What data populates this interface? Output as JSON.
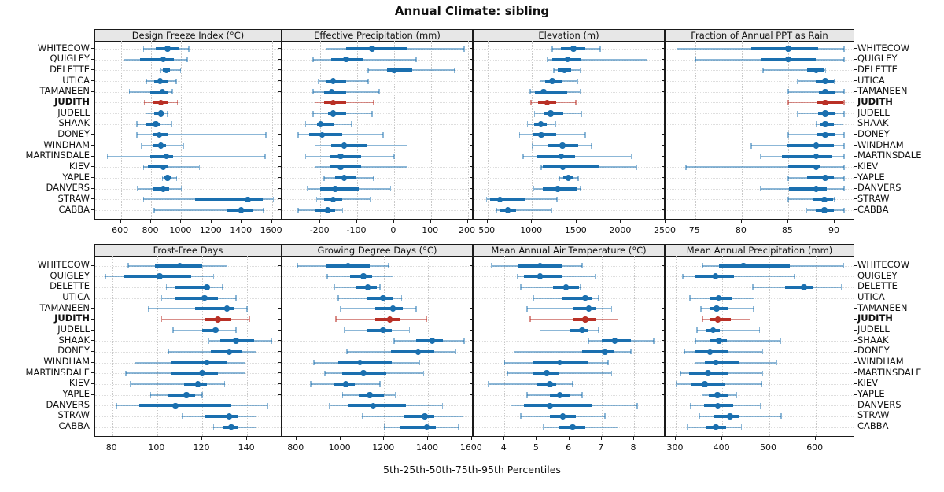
{
  "title": "Annual Climate: sibling",
  "xlabel": "5th-25th-50th-75th-95th Percentiles",
  "highlight_station": "JUDITH",
  "colors": {
    "series": "#1a6faf",
    "series_light": "rgba(26,111,175,0.5)",
    "highlight": "#b93026",
    "highlight_light": "rgba(185,48,38,0.55)",
    "header_bg": "#e7e7e7",
    "border": "#1a1a1a",
    "grid_v": "#c9c9c9",
    "grid_h": "#dedede"
  },
  "chart_data": {
    "type": "dotplot-percentiles",
    "percentiles": [
      5,
      25,
      50,
      75,
      95
    ],
    "legend_note": "thin line = 5th-95th, thick line = 25th-75th, dot = median",
    "stations": [
      "WHITECOW",
      "QUIGLEY",
      "DELETTE",
      "UTICA",
      "TAMANEEN",
      "JUDITH",
      "JUDELL",
      "SHAAK",
      "DONEY",
      "WINDHAM",
      "MARTINSDALE",
      "KIEV",
      "YAPLE",
      "DANVERS",
      "STRAW",
      "CABBA"
    ],
    "panels": [
      {
        "key": "design-freeze-index",
        "title": "Design Freeze Index (°C)",
        "row": 0,
        "col": 0,
        "xlim": [
          430,
          1670
        ],
        "ticks": [
          600,
          800,
          1000,
          1200,
          1400,
          1600
        ],
        "values": [
          [
            750,
            830,
            910,
            980,
            1050
          ],
          [
            620,
            725,
            880,
            950,
            1040
          ],
          [
            865,
            880,
            900,
            925,
            995
          ],
          [
            770,
            820,
            860,
            910,
            965
          ],
          [
            655,
            795,
            875,
            910,
            940
          ],
          [
            755,
            810,
            865,
            915,
            975
          ],
          [
            765,
            820,
            865,
            890,
            910
          ],
          [
            705,
            770,
            830,
            865,
            935
          ],
          [
            705,
            810,
            855,
            915,
            1560
          ],
          [
            735,
            810,
            865,
            900,
            1015
          ],
          [
            510,
            795,
            900,
            945,
            1555
          ],
          [
            750,
            780,
            880,
            910,
            1120
          ],
          [
            875,
            885,
            910,
            935,
            970
          ],
          [
            710,
            810,
            880,
            920,
            1000
          ],
          [
            750,
            1090,
            1440,
            1540,
            1610
          ],
          [
            820,
            1300,
            1395,
            1475,
            1545
          ]
        ]
      },
      {
        "key": "effective-precipitation",
        "title": "Effective Precipitation (mm)",
        "row": 0,
        "col": 1,
        "xlim": [
          -303,
          216
        ],
        "ticks": [
          -200,
          -100,
          0,
          100,
          200
        ],
        "values": [
          [
            -185,
            -130,
            -60,
            35,
            190
          ],
          [
            -220,
            -170,
            -130,
            -85,
            60
          ],
          [
            -70,
            -20,
            0,
            50,
            165
          ],
          [
            -205,
            -185,
            -165,
            -130,
            -70
          ],
          [
            -220,
            -190,
            -170,
            -130,
            -40
          ],
          [
            -215,
            -190,
            -165,
            -130,
            -55
          ],
          [
            -220,
            -180,
            -165,
            -130,
            -60
          ],
          [
            -240,
            -210,
            -200,
            -165,
            -115
          ],
          [
            -260,
            -230,
            -195,
            -140,
            -30
          ],
          [
            -215,
            -170,
            -135,
            -75,
            35
          ],
          [
            -240,
            -175,
            -145,
            -90,
            0
          ],
          [
            -215,
            -175,
            -145,
            -90,
            35
          ],
          [
            -190,
            -160,
            -135,
            -105,
            -55
          ],
          [
            -235,
            -200,
            -160,
            -95,
            -10
          ],
          [
            -210,
            -190,
            -165,
            -140,
            -65
          ],
          [
            -260,
            -215,
            -180,
            -160,
            -140
          ]
        ]
      },
      {
        "key": "elevation",
        "title": "Elevation (m)",
        "row": 0,
        "col": 2,
        "xlim": [
          344,
          2500
        ],
        "ticks": [
          500,
          1000,
          1500,
          2000,
          2500
        ],
        "values": [
          [
            1225,
            1325,
            1465,
            1600,
            1765
          ],
          [
            1170,
            1230,
            1400,
            1545,
            2290
          ],
          [
            1245,
            1290,
            1365,
            1440,
            1540
          ],
          [
            1090,
            1145,
            1225,
            1330,
            1515
          ],
          [
            980,
            1035,
            1130,
            1395,
            1540
          ],
          [
            990,
            1070,
            1170,
            1275,
            1490
          ],
          [
            1030,
            1135,
            1210,
            1355,
            1555
          ],
          [
            950,
            1020,
            1100,
            1165,
            1260
          ],
          [
            860,
            1005,
            1105,
            1270,
            1600
          ],
          [
            1005,
            1170,
            1340,
            1515,
            1670
          ],
          [
            900,
            1055,
            1330,
            1485,
            2115
          ],
          [
            1105,
            1125,
            1345,
            1755,
            2175
          ],
          [
            1305,
            1355,
            1410,
            1465,
            1520
          ],
          [
            1020,
            1120,
            1290,
            1500,
            1545
          ],
          [
            490,
            530,
            640,
            920,
            1280
          ],
          [
            600,
            640,
            730,
            825,
            1220
          ]
        ]
      },
      {
        "key": "fraction-annual-ppt-rain",
        "title": "Fraction of Annual PPT as Rain",
        "row": 0,
        "col": 3,
        "xlim": [
          71.8,
          92.2
        ],
        "ticks": [
          75,
          80,
          85,
          90
        ],
        "values": [
          [
            73,
            81,
            85,
            88.2,
            91
          ],
          [
            75,
            82,
            85,
            88,
            91
          ],
          [
            82.3,
            87,
            88,
            88.9,
            89
          ],
          [
            86,
            88,
            89,
            89.9,
            90
          ],
          [
            85,
            88.3,
            89,
            90,
            91
          ],
          [
            85,
            88.1,
            89,
            90.9,
            91
          ],
          [
            86,
            88.2,
            89,
            90,
            91
          ],
          [
            88,
            88.4,
            89,
            89.9,
            90.9
          ],
          [
            85,
            88.1,
            89,
            90,
            91
          ],
          [
            81,
            84.8,
            88,
            89.9,
            91
          ],
          [
            82,
            84.3,
            88,
            89.7,
            91
          ],
          [
            74,
            85,
            88,
            88.4,
            91
          ],
          [
            85,
            87,
            89,
            89.9,
            91
          ],
          [
            82,
            85.1,
            88,
            89.2,
            91
          ],
          [
            85,
            87.7,
            88.9,
            89.8,
            90
          ],
          [
            87,
            88,
            88.9,
            89.9,
            91
          ]
        ]
      },
      {
        "key": "frost-free-days",
        "title": "Frost-Free Days",
        "row": 1,
        "col": 0,
        "xlim": [
          72.4,
          155.7
        ],
        "ticks": [
          80,
          100,
          120,
          140
        ],
        "values": [
          [
            87,
            99,
            110,
            120,
            131
          ],
          [
            77,
            85,
            101,
            115,
            125
          ],
          [
            104,
            108,
            122,
            123,
            129
          ],
          [
            102,
            108,
            121,
            127,
            135
          ],
          [
            96,
            117,
            131,
            134,
            140
          ],
          [
            102,
            121,
            127,
            133,
            141
          ],
          [
            107,
            120,
            126,
            127,
            135
          ],
          [
            123,
            128,
            135,
            143,
            151
          ],
          [
            105,
            124,
            132,
            138,
            144
          ],
          [
            90,
            106,
            122,
            131,
            139
          ],
          [
            86,
            106,
            120,
            127,
            139
          ],
          [
            88,
            112,
            118,
            122,
            130
          ],
          [
            97,
            105,
            113,
            117,
            120
          ],
          [
            82,
            92,
            108,
            133,
            149
          ],
          [
            111,
            121,
            132,
            136,
            144
          ],
          [
            125,
            129,
            133,
            136,
            144
          ]
        ]
      },
      {
        "key": "growing-degree-days",
        "title": "Growing Degree Days (°C)",
        "row": 1,
        "col": 1,
        "xlim": [
          736,
          1608
        ],
        "ticks": [
          800,
          1000,
          1200,
          1400,
          1600
        ],
        "values": [
          [
            805,
            935,
            1035,
            1135,
            1220
          ],
          [
            940,
            1045,
            1105,
            1145,
            1240
          ],
          [
            975,
            1070,
            1125,
            1165,
            1180
          ],
          [
            990,
            1120,
            1195,
            1240,
            1280
          ],
          [
            1000,
            1160,
            1240,
            1285,
            1345
          ],
          [
            980,
            1160,
            1225,
            1270,
            1395
          ],
          [
            1020,
            1125,
            1195,
            1235,
            1315
          ],
          [
            1245,
            1345,
            1420,
            1470,
            1565
          ],
          [
            1030,
            1230,
            1355,
            1430,
            1525
          ],
          [
            880,
            990,
            1090,
            1235,
            1360
          ],
          [
            930,
            1010,
            1105,
            1210,
            1380
          ],
          [
            865,
            970,
            1025,
            1065,
            1180
          ],
          [
            1010,
            1085,
            1135,
            1200,
            1250
          ],
          [
            950,
            1035,
            1150,
            1300,
            1465
          ],
          [
            1100,
            1290,
            1385,
            1430,
            1560
          ],
          [
            1200,
            1270,
            1395,
            1435,
            1540
          ]
        ]
      },
      {
        "key": "mean-annual-air-temperature",
        "title": "Mean Annual Air Temperature (°C)",
        "row": 1,
        "col": 2,
        "xlim": [
          3.05,
          8.97
        ],
        "ticks": [
          4,
          5,
          6,
          7,
          8
        ],
        "values": [
          [
            3.6,
            4.4,
            5.1,
            5.8,
            6.4
          ],
          [
            4.4,
            4.6,
            5.1,
            5.8,
            6.8
          ],
          [
            4.5,
            5.5,
            5.9,
            6.3,
            6.35
          ],
          [
            4.9,
            5.8,
            6.5,
            6.7,
            6.9
          ],
          [
            4.7,
            6.1,
            6.6,
            6.8,
            7.3
          ],
          [
            4.8,
            6.1,
            6.5,
            6.8,
            7.5
          ],
          [
            5.1,
            6.0,
            6.4,
            6.6,
            6.9
          ],
          [
            6.6,
            7.0,
            7.4,
            7.9,
            8.6
          ],
          [
            4.3,
            6.4,
            7.1,
            7.4,
            7.9
          ],
          [
            4.0,
            4.9,
            5.7,
            6.6,
            7.2
          ],
          [
            4.1,
            4.9,
            5.3,
            5.7,
            7.3
          ],
          [
            3.5,
            5.0,
            5.4,
            5.6,
            6.1
          ],
          [
            4.7,
            5.4,
            5.7,
            6.0,
            6.4
          ],
          [
            4.2,
            4.6,
            5.4,
            6.7,
            8.1
          ],
          [
            4.5,
            5.4,
            5.8,
            6.2,
            7.1
          ],
          [
            5.2,
            5.7,
            6.1,
            6.5,
            7.5
          ]
        ]
      },
      {
        "key": "mean-annual-precipitation",
        "title": "Mean Annual Precipitation (mm)",
        "row": 1,
        "col": 3,
        "xlim": [
          278,
          685
        ],
        "ticks": [
          300,
          400,
          500,
          600
        ],
        "values": [
          [
            358,
            393,
            445,
            545,
            660
          ],
          [
            315,
            340,
            385,
            425,
            555
          ],
          [
            465,
            535,
            575,
            595,
            655
          ],
          [
            330,
            373,
            392,
            420,
            468
          ],
          [
            354,
            372,
            388,
            411,
            467
          ],
          [
            358,
            372,
            390,
            419,
            459
          ],
          [
            345,
            365,
            380,
            395,
            480
          ],
          [
            342,
            375,
            393,
            410,
            525
          ],
          [
            318,
            341,
            373,
            413,
            486
          ],
          [
            341,
            362,
            386,
            436,
            517
          ],
          [
            310,
            328,
            369,
            413,
            486
          ],
          [
            301,
            334,
            362,
            404,
            485
          ],
          [
            356,
            370,
            389,
            413,
            430
          ],
          [
            331,
            360,
            390,
            424,
            481
          ],
          [
            351,
            383,
            416,
            437,
            526
          ],
          [
            325,
            366,
            386,
            408,
            441
          ]
        ]
      }
    ]
  }
}
